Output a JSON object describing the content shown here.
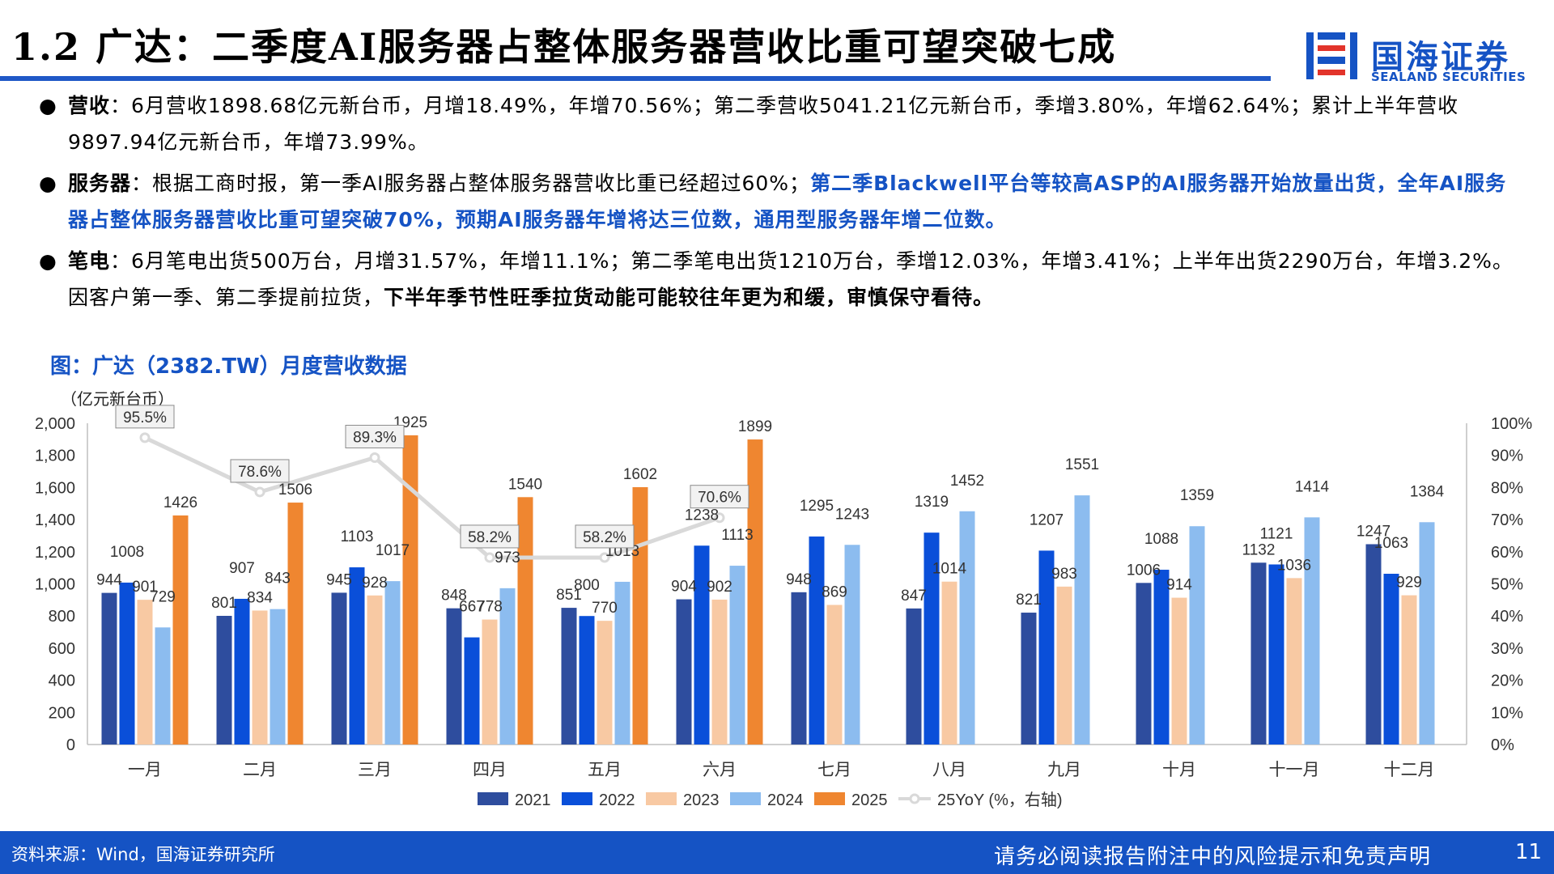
{
  "header": {
    "title": "1.2 广达：二季度AI服务器占整体服务器营收比重可望突破七成",
    "logo_cn": "国海证券",
    "logo_en": "SEALAND SECURITIES"
  },
  "bullets": [
    {
      "label": "营收",
      "parts": [
        {
          "text": "：6月营收1898.68亿元新台币，月增18.49%，年增70.56%；第二季营收5041.21亿元新台币，季增3.80%，年增62.64%；累计上半年营收9897.94亿元新台币，年增73.99%。",
          "style": "normal"
        }
      ]
    },
    {
      "label": "服务器",
      "parts": [
        {
          "text": "：根据工商时报，第一季AI服务器占整体服务器营收比重已经超过60%；",
          "style": "normal"
        },
        {
          "text": "第二季Blackwell平台等较高ASP的AI服务器开始放量出货，全年AI服务器占整体服务器营收比重可望突破70%，预期AI服务器年增将达三位数，通用型服务器年增二位数。",
          "style": "highlight"
        }
      ]
    },
    {
      "label": "笔电",
      "parts": [
        {
          "text": "：6月笔电出货500万台，月增31.57%，年增11.1%；第二季笔电出货1210万台，季增12.03%，年增3.41%；上半年出货2290万台，年增3.2%。因客户第一季、第二季提前拉货，",
          "style": "normal"
        },
        {
          "text": "下半年季节性旺季拉货动能可能较往年更为和缓，审慎保守看待。",
          "style": "bold"
        }
      ]
    }
  ],
  "figure_title": "图：广达（2382.TW）月度营收数据",
  "chart_data": {
    "type": "bar",
    "ylabel": "（亿元新台币）",
    "categories": [
      "一月",
      "二月",
      "三月",
      "四月",
      "五月",
      "六月",
      "七月",
      "八月",
      "九月",
      "十月",
      "十一月",
      "十二月"
    ],
    "ylim": [
      0,
      2000
    ],
    "y_ticks": [
      "0",
      "200",
      "400",
      "600",
      "800",
      "1,000",
      "1,200",
      "1,400",
      "1,600",
      "1,800",
      "2,000"
    ],
    "y2lim": [
      0,
      100
    ],
    "y2_ticks": [
      "0%",
      "10%",
      "20%",
      "30%",
      "40%",
      "50%",
      "60%",
      "70%",
      "80%",
      "90%",
      "100%"
    ],
    "series": [
      {
        "name": "2021",
        "color": "#2e4d9e",
        "values": [
          944,
          801,
          945,
          848,
          851,
          904,
          948,
          847,
          821,
          1006,
          1132,
          1247
        ]
      },
      {
        "name": "2022",
        "color": "#0a4fd9",
        "values": [
          1008,
          907,
          1103,
          667,
          800,
          1238,
          1295,
          1319,
          1207,
          1088,
          1121,
          1063
        ]
      },
      {
        "name": "2023",
        "color": "#f8c9a3",
        "values": [
          901,
          834,
          928,
          778,
          770,
          902,
          869,
          1014,
          983,
          914,
          1036,
          929
        ]
      },
      {
        "name": "2024",
        "color": "#8cbcef",
        "values": [
          729,
          843,
          1017,
          973,
          1013,
          1113,
          1243,
          1452,
          1551,
          1359,
          1414,
          1384
        ]
      },
      {
        "name": "2025",
        "color": "#ef8630",
        "values": [
          1426,
          1506,
          1925,
          1540,
          1602,
          1899,
          null,
          null,
          null,
          null,
          null,
          null
        ]
      }
    ],
    "line_series": {
      "name": "25YoY (%，右轴)",
      "color": "#d9d9d9",
      "values": [
        95.5,
        78.6,
        89.3,
        58.2,
        58.2,
        70.6
      ],
      "labels": [
        "95.5%",
        "78.6%",
        "89.3%",
        "58.2%",
        "58.2%",
        "70.6%"
      ]
    },
    "legend_position": "bottom"
  },
  "footer": {
    "source": "资料来源：Wind，国海证券研究所",
    "disclaimer": "请务必阅读报告附注中的风险提示和免责声明",
    "page": "11"
  }
}
